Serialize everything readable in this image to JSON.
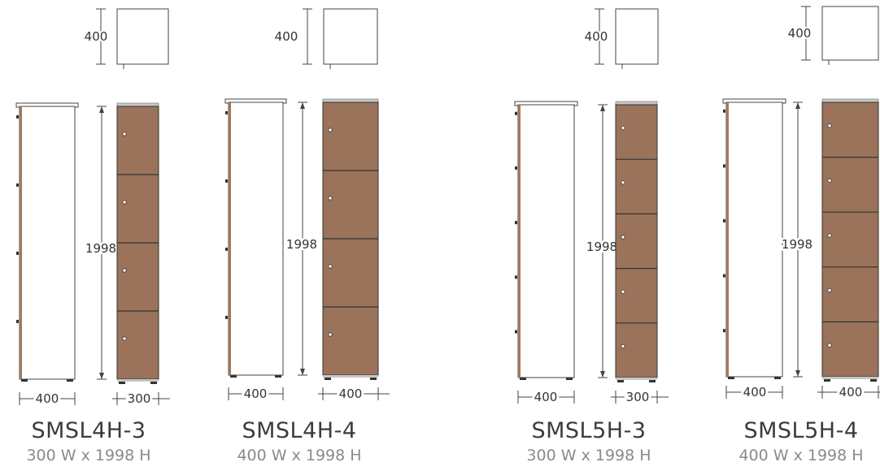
{
  "lockers": [
    {
      "code": "SMSL4H-3",
      "size": "300 W x 1998 H",
      "depth_label": "400",
      "height_label": "1998",
      "side_width_label": "400",
      "front_width_label": "300",
      "tiers": 4,
      "colors": {
        "door": "#9a735a",
        "carcass": "#ffffff",
        "edge": "#a07a5d",
        "top": "#c6c6c6"
      }
    },
    {
      "code": "SMSL4H-4",
      "size": "400 W x 1998 H",
      "depth_label": "400",
      "height_label": "1998",
      "side_width_label": "400",
      "front_width_label": "400",
      "tiers": 4,
      "colors": {
        "door": "#9a735a",
        "carcass": "#ffffff",
        "edge": "#a07a5d",
        "top": "#c6c6c6"
      }
    },
    {
      "code": "SMSL5H-3",
      "size": "300 W x 1998 H",
      "depth_label": "400",
      "height_label": "1998",
      "side_width_label": "400",
      "front_width_label": "300",
      "tiers": 5,
      "colors": {
        "door": "#9a735a",
        "carcass": "#ffffff",
        "edge": "#a07a5d",
        "top": "#c6c6c6"
      }
    },
    {
      "code": "SMSL5H-4",
      "size": "400 W x 1998 H",
      "depth_label": "400",
      "height_label": "1998",
      "side_width_label": "400",
      "front_width_label": "400",
      "tiers": 5,
      "colors": {
        "door": "#9a735a",
        "carcass": "#ffffff",
        "edge": "#a07a5d",
        "top": "#c6c6c6"
      }
    }
  ]
}
